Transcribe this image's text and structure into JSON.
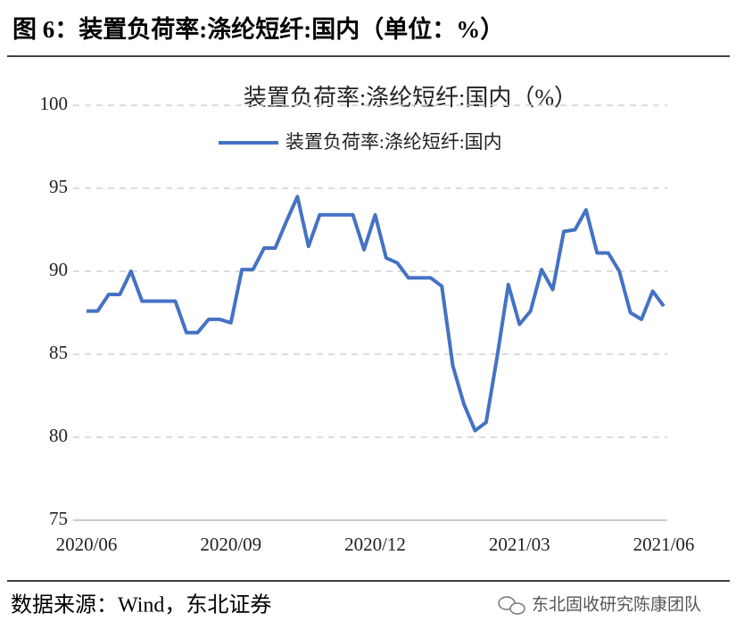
{
  "header": {
    "title": "图 6：装置负荷率:涤纶短纤:国内（单位：%）"
  },
  "chart_data": {
    "type": "line",
    "title": "装置负荷率:涤纶短纤:国内（%）",
    "categories": [
      "2020/06",
      null,
      null,
      null,
      null,
      null,
      null,
      null,
      null,
      null,
      null,
      null,
      null,
      "2020/09",
      null,
      null,
      null,
      null,
      null,
      null,
      null,
      null,
      null,
      null,
      null,
      null,
      "2020/12",
      null,
      null,
      null,
      null,
      null,
      null,
      null,
      null,
      null,
      null,
      null,
      null,
      "2021/03",
      null,
      null,
      null,
      null,
      null,
      null,
      null,
      null,
      null,
      null,
      null,
      null,
      "2021/06"
    ],
    "series": [
      {
        "name": "装置负荷率:涤纶短纤:国内",
        "color": "#4472c4",
        "values": [
          87.6,
          87.6,
          88.6,
          88.6,
          90.0,
          88.2,
          88.2,
          88.2,
          88.2,
          86.3,
          86.3,
          87.1,
          87.1,
          86.9,
          90.1,
          90.1,
          91.4,
          91.4,
          93.0,
          94.5,
          91.5,
          93.4,
          93.4,
          93.4,
          93.4,
          91.3,
          93.4,
          90.8,
          90.5,
          89.6,
          89.6,
          89.6,
          89.1,
          84.3,
          82.0,
          80.4,
          80.9,
          84.9,
          89.2,
          86.8,
          87.6,
          90.1,
          88.9,
          92.4,
          92.5,
          93.7,
          91.1,
          91.1,
          90.0,
          87.5,
          87.1,
          88.8,
          87.9
        ]
      }
    ],
    "ylim": [
      75,
      100
    ],
    "yticks": [
      75,
      80,
      85,
      90,
      95,
      100
    ],
    "grid": true,
    "legend": "top"
  },
  "footer": {
    "source": "数据来源：Wind，东北证券",
    "watermark": "东北固收研究陈康团队"
  }
}
